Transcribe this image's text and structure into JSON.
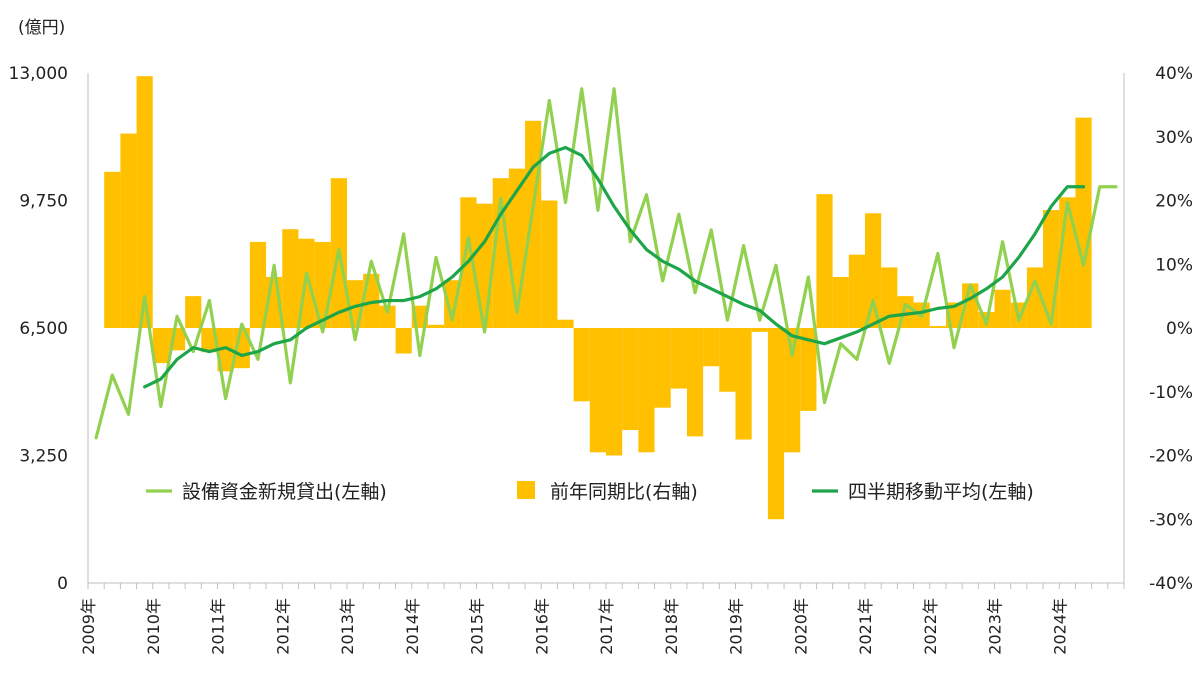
{
  "chart_data": {
    "type": "bar+line",
    "left_axis_unit_label": "(億円)",
    "left_axis": {
      "min": 0,
      "max": 13000,
      "ticks": [
        "0",
        "3,250",
        "6,500",
        "9,750",
        "13,000"
      ],
      "tick_values": [
        0,
        3250,
        6500,
        9750,
        13000
      ]
    },
    "right_axis": {
      "min": -40,
      "max": 40,
      "ticks": [
        "-40%",
        "-30%",
        "-20%",
        "-10%",
        "0%",
        "10%",
        "20%",
        "30%",
        "40%"
      ],
      "tick_values": [
        -40,
        -30,
        -20,
        -10,
        0,
        10,
        20,
        30,
        40
      ]
    },
    "x_axis": {
      "labels": [
        "2009年",
        "2010年",
        "2011年",
        "2012年",
        "2013年",
        "2014年",
        "2015年",
        "2016年",
        "2017年",
        "2018年",
        "2019年",
        "2020年",
        "2021年",
        "2022年",
        "2023年",
        "2024年"
      ],
      "label_quarter_index": [
        0,
        4,
        8,
        12,
        16,
        20,
        24,
        28,
        32,
        36,
        40,
        44,
        48,
        52,
        56,
        60
      ],
      "quarters_total": 64
    },
    "legend": {
      "placement": "inside-lower-middle"
    },
    "colors": {
      "bars": "#FFC000",
      "line_new": "#92D050",
      "line_avg": "#1EA54A",
      "axis": "#BFBFBF"
    },
    "series": [
      {
        "name": "設備資金新規貸出(左軸)",
        "type": "line",
        "axis": "left",
        "start_index": 0,
        "values": [
          3700,
          5300,
          4300,
          7300,
          4500,
          6800,
          5900,
          7200,
          4700,
          6600,
          5700,
          8100,
          5100,
          7900,
          6400,
          8500,
          6200,
          8200,
          6900,
          8900,
          5800,
          8300,
          6700,
          8800,
          6400,
          9800,
          6900,
          9600,
          12300,
          9700,
          12600,
          9500,
          12600,
          8700,
          9900,
          7700,
          9400,
          7400,
          9000,
          6700,
          8600,
          6700,
          8100,
          5800,
          7800,
          4600,
          6100,
          5700,
          7200,
          5600,
          7100,
          6800,
          8400,
          6000,
          7600,
          6600,
          8700,
          6700,
          7700,
          6600,
          9700,
          8100,
          10100,
          10100
        ]
      },
      {
        "name": "前年同期比(右軸)",
        "type": "bar",
        "axis": "right",
        "start_index": 1,
        "values": [
          24.5,
          30.5,
          39.5,
          -5.5,
          -3.5,
          5,
          -3.8,
          -6.8,
          -6.3,
          13.5,
          8,
          15.5,
          14,
          13.5,
          23.5,
          7.5,
          8.5,
          3.5,
          -4,
          3.5,
          0.5,
          7.5,
          20.5,
          19.5,
          23.5,
          25,
          32.5,
          20,
          1.3,
          -11.5,
          -19.5,
          -20,
          -16,
          -19.5,
          -12.5,
          -9.5,
          -17,
          -6,
          -10,
          -17.5,
          -0.6,
          -30,
          -19.5,
          -13,
          21,
          8,
          11.5,
          18,
          9.5,
          5,
          4,
          0.3,
          4,
          7,
          2.5,
          6,
          4,
          9.5,
          18.5,
          20.5,
          33
        ]
      },
      {
        "name": "四半期移動平均(左軸)",
        "type": "line",
        "axis": "left",
        "start_index": 3,
        "values": [
          5000,
          5200,
          5700,
          6000,
          5900,
          6000,
          5800,
          5900,
          6100,
          6200,
          6500,
          6700,
          6900,
          7050,
          7150,
          7200,
          7200,
          7300,
          7500,
          7800,
          8200,
          8700,
          9400,
          10000,
          10600,
          10950,
          11100,
          10900,
          10300,
          9600,
          9000,
          8500,
          8200,
          8000,
          7700,
          7500,
          7300,
          7100,
          6950,
          6600,
          6300,
          6200,
          6100,
          6250,
          6400,
          6600,
          6800,
          6850,
          6900,
          7000,
          7050,
          7250,
          7500,
          7800,
          8300,
          8900,
          9600,
          10100,
          10100
        ]
      }
    ]
  }
}
